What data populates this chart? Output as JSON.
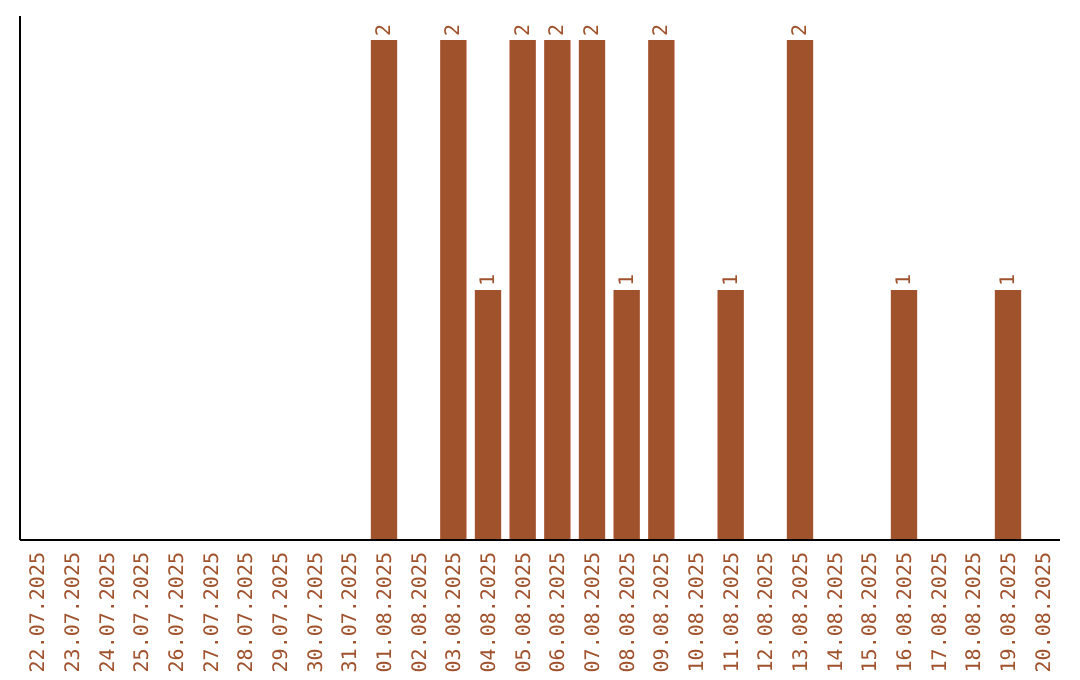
{
  "chart_data": {
    "type": "bar",
    "categories": [
      "22.07.2025",
      "23.07.2025",
      "24.07.2025",
      "25.07.2025",
      "26.07.2025",
      "27.07.2025",
      "28.07.2025",
      "29.07.2025",
      "30.07.2025",
      "31.07.2025",
      "01.08.2025",
      "02.08.2025",
      "03.08.2025",
      "04.08.2025",
      "05.08.2025",
      "06.08.2025",
      "07.08.2025",
      "08.08.2025",
      "09.08.2025",
      "10.08.2025",
      "11.08.2025",
      "12.08.2025",
      "13.08.2025",
      "14.08.2025",
      "15.08.2025",
      "16.08.2025",
      "17.08.2025",
      "18.08.2025",
      "19.08.2025",
      "20.08.2025"
    ],
    "values": [
      0,
      0,
      0,
      0,
      0,
      0,
      0,
      0,
      0,
      0,
      2,
      0,
      2,
      1,
      2,
      2,
      2,
      1,
      2,
      0,
      1,
      0,
      2,
      0,
      0,
      1,
      0,
      0,
      1,
      0
    ],
    "value_labels": [
      null,
      null,
      null,
      null,
      null,
      null,
      null,
      null,
      null,
      null,
      "2",
      null,
      "2",
      "1",
      "2",
      "2",
      "2",
      "1",
      "2",
      null,
      "1",
      null,
      "2",
      null,
      null,
      "1",
      null,
      null,
      "1",
      null
    ],
    "color": "#a0522d"
  }
}
